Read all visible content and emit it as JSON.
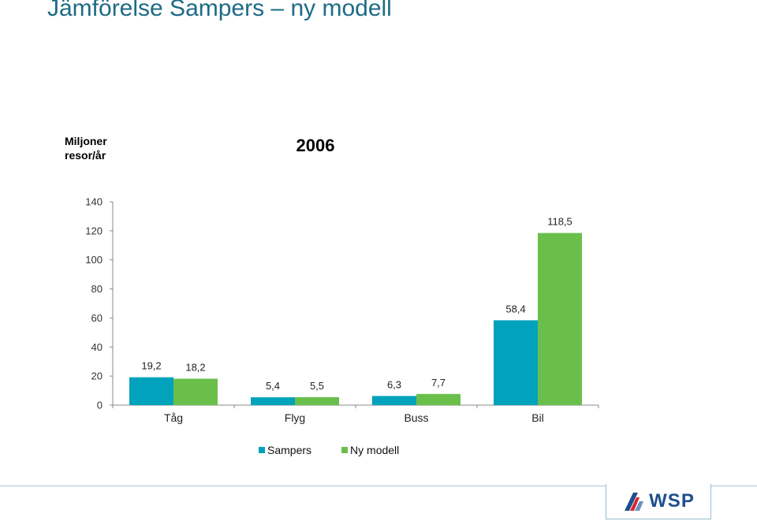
{
  "page": {
    "title": "Jämförelse Sampers – ny modell"
  },
  "logo": {
    "text": "WSP",
    "icon": "wsp-logo-icon"
  },
  "colors": {
    "title": "#1d6b86",
    "sampers": "#00a3bb",
    "ny_modell": "#6abf4b"
  },
  "chart_data": {
    "type": "bar",
    "title": "2006",
    "ylabel": "Miljoner resor/år",
    "ylabel_lines": [
      "Miljoner",
      "resor/år"
    ],
    "xlabel": "",
    "categories": [
      "Tåg",
      "Flyg",
      "Buss",
      "Bil"
    ],
    "series": [
      {
        "name": "Sampers",
        "values": [
          19.2,
          5.4,
          6.3,
          58.4
        ],
        "labels": [
          "19,2",
          "5,4",
          "6,3",
          "58,4"
        ]
      },
      {
        "name": "Ny modell",
        "values": [
          18.2,
          5.5,
          7.7,
          118.5
        ],
        "labels": [
          "18,2",
          "5,5",
          "7,7",
          "118,5"
        ]
      }
    ],
    "ylim": [
      0,
      140
    ],
    "yticks": [
      0,
      20,
      40,
      60,
      80,
      100,
      120,
      140
    ],
    "grid": false,
    "legend": "bottom"
  }
}
